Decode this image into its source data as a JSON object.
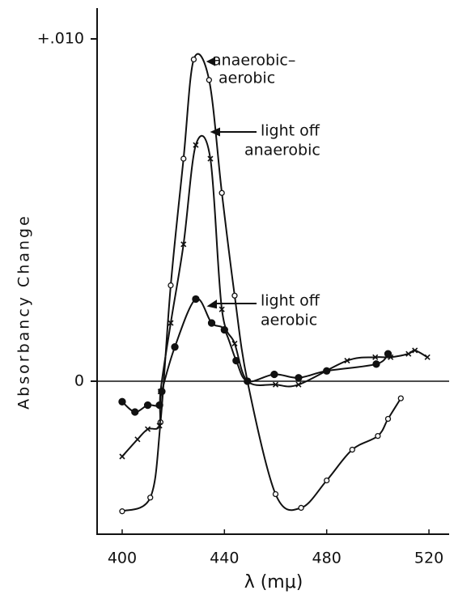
{
  "chart_data": {
    "type": "line",
    "x_label": "λ (mμ)",
    "y_label": "Absorbancy Change",
    "xlim": [
      390.2,
      527.9
    ],
    "ylim": [
      -0.00447,
      0.0109
    ],
    "xticks": [
      400,
      440,
      480,
      520
    ],
    "yticks": [
      0,
      {
        "value": 0.01,
        "label": "+.010"
      }
    ],
    "zero_line": true,
    "annotations": [
      [
        "anaerobic–",
        "aerobic"
      ],
      [
        "light off",
        "anaerobic"
      ],
      [
        "light off",
        "aerobic"
      ]
    ],
    "series": [
      {
        "marker": "circle-open",
        "color": "#111",
        "x": [
          400,
          411,
          415,
          419,
          424,
          428,
          434,
          439,
          444,
          449,
          460,
          470,
          480,
          490,
          500,
          504,
          509
        ],
        "values": [
          -0.0038,
          -0.0034,
          -0.0012,
          0.0028,
          0.0065,
          0.0094,
          0.0088,
          0.0055,
          0.0025,
          0.0,
          -0.0033,
          -0.0037,
          -0.0029,
          -0.002,
          -0.0016,
          -0.0011,
          -0.0005
        ]
      },
      {
        "marker": "x",
        "color": "#111",
        "x": [
          400,
          406,
          410,
          414.6,
          415,
          419,
          424,
          428.8,
          434.5,
          439,
          444,
          449,
          460,
          469,
          488,
          499,
          505,
          512,
          514.5,
          519.4
        ],
        "values": [
          -0.0022,
          -0.0017,
          -0.0014,
          -0.0013,
          -0.0003,
          0.0017,
          0.004,
          0.0069,
          0.0065,
          0.0021,
          0.0011,
          0.0,
          -0.0001,
          -0.0001,
          0.0006,
          0.0007,
          0.0007,
          0.0008,
          0.0009,
          0.0007
        ]
      },
      {
        "marker": "circle-filled",
        "color": "#111",
        "x": [
          400,
          405,
          410,
          414.6,
          415.5,
          420.6,
          428.8,
          435,
          440,
          444.6,
          449,
          459.5,
          469,
          480,
          499.4,
          504
        ],
        "values": [
          -0.0006,
          -0.0009,
          -0.0007,
          -0.0007,
          -0.0003,
          0.001,
          0.0024,
          0.0017,
          0.0015,
          0.0006,
          0.0,
          0.0002,
          0.0001,
          0.0003,
          0.0005,
          0.0008
        ]
      }
    ]
  }
}
